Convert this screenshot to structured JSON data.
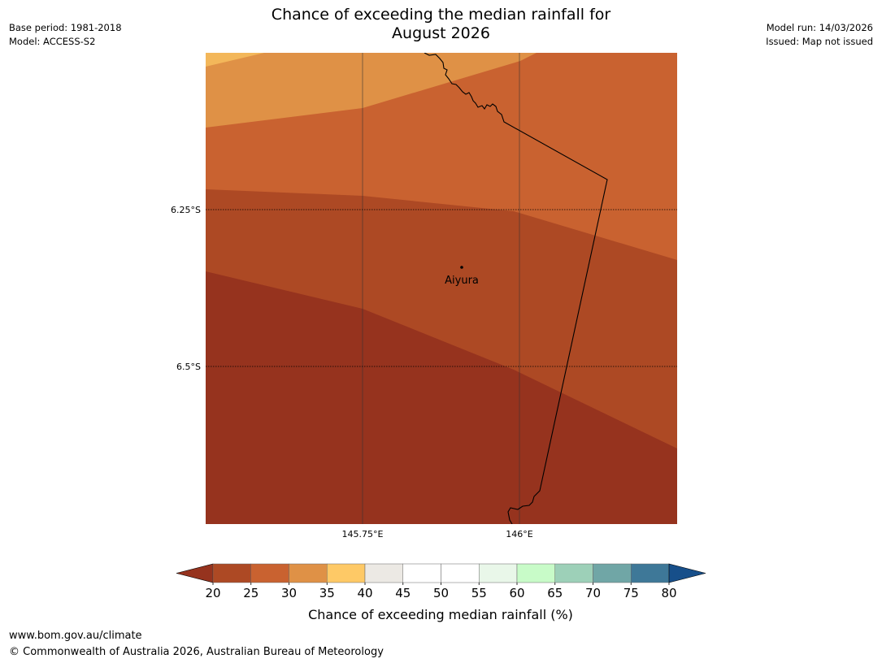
{
  "title": {
    "line1": "Chance of exceeding the median rainfall for",
    "line2": "August 2026"
  },
  "meta_left": {
    "base_period": "Base period: 1981-2018",
    "model": "Model: ACCESS-S2"
  },
  "meta_right": {
    "model_run": "Model run: 14/03/2026",
    "issued": "Issued: Map not issued"
  },
  "map": {
    "lat_labels": [
      "6.25°S",
      "6.5°S"
    ],
    "lon_labels": [
      "145.75°E",
      "146°E"
    ],
    "place": {
      "name": "Aiyura"
    },
    "region_colors": {
      "c35_40": "#f3b75a",
      "c30_35": "#df9146",
      "c25_30": "#c96230",
      "c20_25": "#ad4924",
      "below_20": "#96331e"
    }
  },
  "colorbar": {
    "ticks": [
      "20",
      "25",
      "30",
      "35",
      "40",
      "45",
      "50",
      "55",
      "60",
      "65",
      "70",
      "75",
      "80"
    ],
    "colors": [
      "#ad4924",
      "#c96230",
      "#df9146",
      "#fec966",
      "#ece9e4",
      "#ffffff",
      "#ffffff",
      "#e9f7e9",
      "#c8fbc8",
      "#9dd0b8",
      "#70a6a6",
      "#3e7898"
    ],
    "under_color": "#96331e",
    "over_color": "#174f8a",
    "label": "Chance of exceeding median rainfall (%)"
  },
  "footer": {
    "url": "www.bom.gov.au/climate",
    "copyright": "© Commonwealth of Australia 2026, Australian Bureau of Meteorology"
  }
}
